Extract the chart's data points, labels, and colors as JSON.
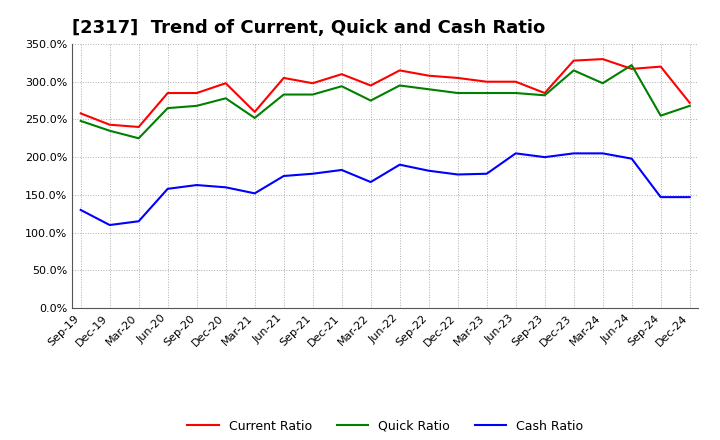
{
  "title": "[2317]  Trend of Current, Quick and Cash Ratio",
  "labels": [
    "Sep-19",
    "Dec-19",
    "Mar-20",
    "Jun-20",
    "Sep-20",
    "Dec-20",
    "Mar-21",
    "Jun-21",
    "Sep-21",
    "Dec-21",
    "Mar-22",
    "Jun-22",
    "Sep-22",
    "Dec-22",
    "Mar-23",
    "Jun-23",
    "Sep-23",
    "Dec-23",
    "Mar-24",
    "Jun-24",
    "Sep-24",
    "Dec-24"
  ],
  "current_ratio": [
    258,
    243,
    240,
    285,
    285,
    298,
    260,
    305,
    298,
    310,
    295,
    315,
    308,
    305,
    300,
    300,
    285,
    328,
    330,
    317,
    320,
    272
  ],
  "quick_ratio": [
    248,
    235,
    225,
    265,
    268,
    278,
    252,
    283,
    283,
    294,
    275,
    295,
    290,
    285,
    285,
    285,
    282,
    315,
    298,
    322,
    255,
    268
  ],
  "cash_ratio": [
    130,
    110,
    115,
    158,
    163,
    160,
    152,
    175,
    178,
    183,
    167,
    190,
    182,
    177,
    178,
    205,
    200,
    205,
    205,
    198,
    147,
    147
  ],
  "current_color": "#FF0000",
  "quick_color": "#008000",
  "cash_color": "#0000FF",
  "ylim": [
    0,
    350
  ],
  "yticks": [
    0,
    50,
    100,
    150,
    200,
    250,
    300,
    350
  ],
  "background_color": "#ffffff",
  "grid_color": "#999999",
  "title_fontsize": 13,
  "tick_fontsize": 8,
  "legend_fontsize": 9
}
